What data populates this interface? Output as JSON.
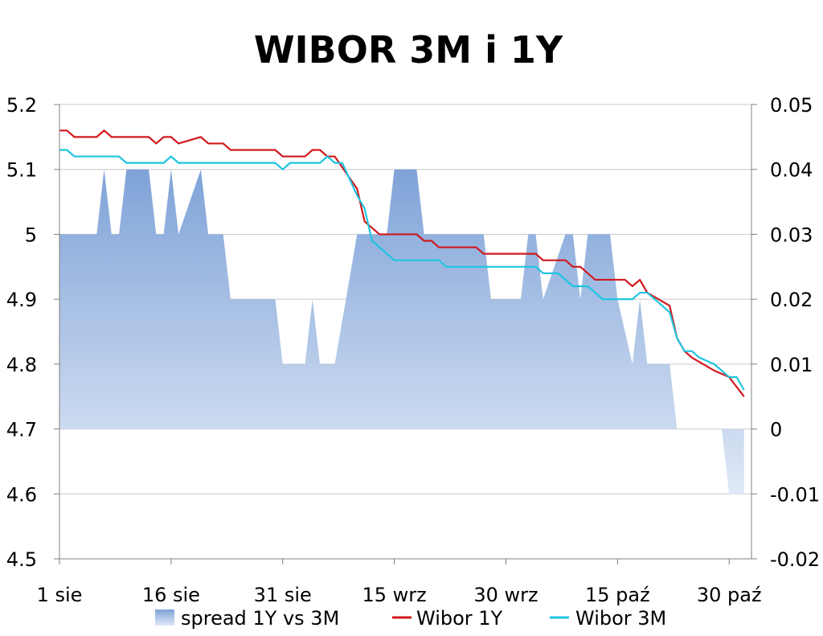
{
  "chart_data": {
    "type": "line",
    "title": "WIBOR 3M i 1Y",
    "xlabel": "",
    "ylabel": "",
    "x_ticks": [
      "1 sie",
      "16 sie",
      "31 sie",
      "15 wrz",
      "30 wrz",
      "15 paź",
      "30 paź"
    ],
    "x_tick_days": [
      0,
      15,
      30,
      45,
      60,
      75,
      90
    ],
    "x_range_days": [
      0,
      93
    ],
    "ylim_left": [
      4.5,
      5.2
    ],
    "yticks_left": [
      "5.2",
      "5.1",
      "5",
      "4.9",
      "4.8",
      "4.7",
      "4.6",
      "4.5"
    ],
    "ylim_right": [
      -0.02,
      0.05
    ],
    "yticks_right": [
      "0.05",
      "0.04",
      "0.03",
      "0.02",
      "0.01",
      "0",
      "-0.01",
      "-0.02"
    ],
    "grid": "horizontal",
    "legend_position": "bottom",
    "series": [
      {
        "name": "spread 1Y vs 3M",
        "type": "area",
        "axis": "right",
        "color": "#7fa3d8",
        "color_light": "#dfe8f6",
        "points": [
          [
            0,
            0.03
          ],
          [
            5,
            0.03
          ],
          [
            6,
            0.04
          ],
          [
            7,
            0.03
          ],
          [
            8,
            0.03
          ],
          [
            9,
            0.04
          ],
          [
            12,
            0.04
          ],
          [
            13,
            0.03
          ],
          [
            14,
            0.03
          ],
          [
            15,
            0.04
          ],
          [
            16,
            0.03
          ],
          [
            19,
            0.04
          ],
          [
            20,
            0.03
          ],
          [
            22,
            0.03
          ],
          [
            23,
            0.02
          ],
          [
            29,
            0.02
          ],
          [
            30,
            0.01
          ],
          [
            33,
            0.01
          ],
          [
            34,
            0.02
          ],
          [
            35,
            0.01
          ],
          [
            37,
            0.01
          ],
          [
            40,
            0.03
          ],
          [
            44,
            0.03
          ],
          [
            45,
            0.04
          ],
          [
            48,
            0.04
          ],
          [
            49,
            0.03
          ],
          [
            57,
            0.03
          ],
          [
            58,
            0.02
          ],
          [
            62,
            0.02
          ],
          [
            63,
            0.03
          ],
          [
            64,
            0.03
          ],
          [
            65,
            0.02
          ],
          [
            68,
            0.03
          ],
          [
            69,
            0.03
          ],
          [
            70,
            0.02
          ],
          [
            71,
            0.03
          ],
          [
            74,
            0.03
          ],
          [
            75,
            0.02
          ],
          [
            77,
            0.01
          ],
          [
            78,
            0.02
          ],
          [
            79,
            0.01
          ],
          [
            82,
            0.01
          ],
          [
            83,
            0
          ],
          [
            89,
            0
          ],
          [
            90,
            -0.01
          ],
          [
            92,
            -0.01
          ],
          [
            92,
            0
          ]
        ]
      },
      {
        "name": "Wibor 1Y",
        "type": "line",
        "axis": "left",
        "color": "#d0191e",
        "points": [
          [
            0,
            5.16
          ],
          [
            1,
            5.16
          ],
          [
            2,
            5.15
          ],
          [
            5,
            5.15
          ],
          [
            6,
            5.16
          ],
          [
            7,
            5.15
          ],
          [
            12,
            5.15
          ],
          [
            13,
            5.14
          ],
          [
            14,
            5.15
          ],
          [
            15,
            5.15
          ],
          [
            16,
            5.14
          ],
          [
            19,
            5.15
          ],
          [
            20,
            5.14
          ],
          [
            22,
            5.14
          ],
          [
            23,
            5.13
          ],
          [
            29,
            5.13
          ],
          [
            30,
            5.12
          ],
          [
            33,
            5.12
          ],
          [
            34,
            5.13
          ],
          [
            35,
            5.13
          ],
          [
            36,
            5.12
          ],
          [
            37,
            5.12
          ],
          [
            40,
            5.07
          ],
          [
            41,
            5.02
          ],
          [
            43,
            5.0
          ],
          [
            48,
            5.0
          ],
          [
            49,
            4.99
          ],
          [
            50,
            4.99
          ],
          [
            51,
            4.98
          ],
          [
            56,
            4.98
          ],
          [
            57,
            4.97
          ],
          [
            64,
            4.97
          ],
          [
            65,
            4.96
          ],
          [
            68,
            4.96
          ],
          [
            69,
            4.95
          ],
          [
            70,
            4.95
          ],
          [
            72,
            4.93
          ],
          [
            76,
            4.93
          ],
          [
            77,
            4.92
          ],
          [
            78,
            4.93
          ],
          [
            79,
            4.91
          ],
          [
            82,
            4.89
          ],
          [
            83,
            4.84
          ],
          [
            84,
            4.82
          ],
          [
            85,
            4.81
          ],
          [
            88,
            4.79
          ],
          [
            90,
            4.78
          ],
          [
            92,
            4.75
          ]
        ]
      },
      {
        "name": "Wibor 3M",
        "type": "line",
        "axis": "left",
        "color": "#1ec5e0",
        "points": [
          [
            0,
            5.13
          ],
          [
            1,
            5.13
          ],
          [
            2,
            5.12
          ],
          [
            8,
            5.12
          ],
          [
            9,
            5.11
          ],
          [
            14,
            5.11
          ],
          [
            15,
            5.12
          ],
          [
            16,
            5.11
          ],
          [
            29,
            5.11
          ],
          [
            30,
            5.1
          ],
          [
            31,
            5.11
          ],
          [
            35,
            5.11
          ],
          [
            36,
            5.12
          ],
          [
            37,
            5.11
          ],
          [
            38,
            5.11
          ],
          [
            40,
            5.06
          ],
          [
            41,
            5.04
          ],
          [
            42,
            4.99
          ],
          [
            44,
            4.97
          ],
          [
            45,
            4.96
          ],
          [
            51,
            4.96
          ],
          [
            52,
            4.95
          ],
          [
            64,
            4.95
          ],
          [
            65,
            4.94
          ],
          [
            67,
            4.94
          ],
          [
            68,
            4.93
          ],
          [
            69,
            4.92
          ],
          [
            71,
            4.92
          ],
          [
            72,
            4.91
          ],
          [
            73,
            4.9
          ],
          [
            77,
            4.9
          ],
          [
            78,
            4.91
          ],
          [
            79,
            4.91
          ],
          [
            82,
            4.88
          ],
          [
            83,
            4.84
          ],
          [
            84,
            4.82
          ],
          [
            85,
            4.82
          ],
          [
            86,
            4.81
          ],
          [
            88,
            4.8
          ],
          [
            90,
            4.78
          ],
          [
            91,
            4.78
          ],
          [
            92,
            4.76
          ]
        ]
      }
    ]
  }
}
